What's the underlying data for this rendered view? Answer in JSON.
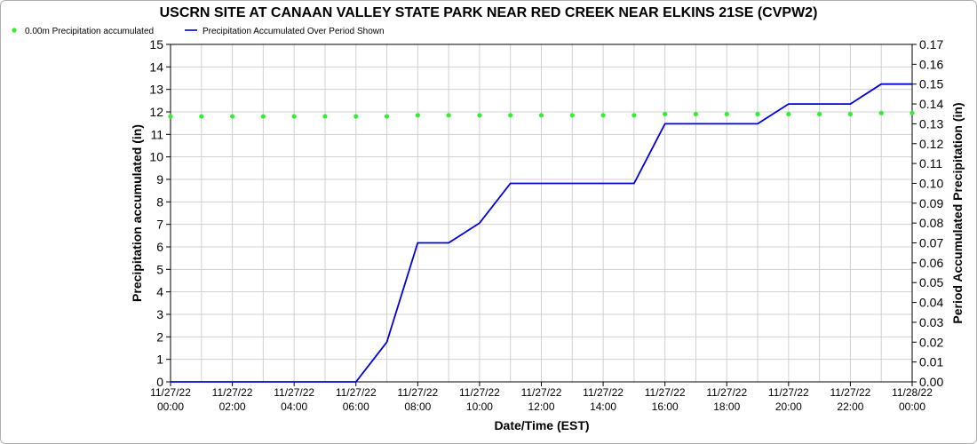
{
  "chart_data": {
    "type": "line",
    "title": "USCRN SITE AT CANAAN VALLEY STATE PARK NEAR RED CREEK NEAR ELKINS 21SE (CVPW2)",
    "xlabel": "Date/Time (EST)",
    "ylabel_left": "Precipitation accumulated (in)",
    "ylabel_right": "Period Accumulated Precipitation (in)",
    "ylim_left": [
      0,
      15
    ],
    "ylim_right": [
      0,
      0.17
    ],
    "grid": true,
    "legend_position": "top-left",
    "x_ticks": [
      {
        "date": "11/27/22",
        "time": "00:00"
      },
      {
        "date": "11/27/22",
        "time": "02:00"
      },
      {
        "date": "11/27/22",
        "time": "04:00"
      },
      {
        "date": "11/27/22",
        "time": "06:00"
      },
      {
        "date": "11/27/22",
        "time": "08:00"
      },
      {
        "date": "11/27/22",
        "time": "10:00"
      },
      {
        "date": "11/27/22",
        "time": "12:00"
      },
      {
        "date": "11/27/22",
        "time": "14:00"
      },
      {
        "date": "11/27/22",
        "time": "16:00"
      },
      {
        "date": "11/27/22",
        "time": "18:00"
      },
      {
        "date": "11/27/22",
        "time": "20:00"
      },
      {
        "date": "11/27/22",
        "time": "22:00"
      },
      {
        "date": "11/28/22",
        "time": "00:00"
      }
    ],
    "y_ticks_left": [
      "0",
      "1",
      "2",
      "3",
      "4",
      "5",
      "6",
      "7",
      "8",
      "9",
      "10",
      "11",
      "12",
      "13",
      "14",
      "15"
    ],
    "y_ticks_right": [
      "0.00",
      "0.01",
      "0.02",
      "0.03",
      "0.04",
      "0.05",
      "0.06",
      "0.07",
      "0.08",
      "0.09",
      "0.10",
      "0.11",
      "0.12",
      "0.13",
      "0.14",
      "0.15",
      "0.16",
      "0.17"
    ],
    "series": [
      {
        "name": "0.00m Precipitation accumulated",
        "axis": "left",
        "style": "scatter",
        "color": "#33ee33",
        "x": [
          0,
          1,
          2,
          3,
          4,
          5,
          6,
          7,
          8,
          9,
          10,
          11,
          12,
          13,
          14,
          15,
          16,
          17,
          18,
          19,
          20,
          21,
          22,
          23,
          24
        ],
        "y": [
          11.8,
          11.8,
          11.8,
          11.8,
          11.8,
          11.8,
          11.8,
          11.8,
          11.85,
          11.85,
          11.85,
          11.85,
          11.85,
          11.85,
          11.85,
          11.85,
          11.9,
          11.9,
          11.9,
          11.9,
          11.9,
          11.9,
          11.9,
          11.95,
          11.95
        ]
      },
      {
        "name": "Precipitation Accumulated Over Period Shown",
        "axis": "right",
        "style": "line",
        "color": "#0000dd",
        "x": [
          0,
          1,
          2,
          3,
          4,
          5,
          6,
          7,
          8,
          9,
          10,
          11,
          12,
          13,
          14,
          15,
          16,
          17,
          18,
          19,
          20,
          21,
          22,
          23,
          24
        ],
        "y": [
          0,
          0,
          0,
          0,
          0,
          0,
          0,
          0.02,
          0.07,
          0.07,
          0.08,
          0.1,
          0.1,
          0.1,
          0.1,
          0.1,
          0.13,
          0.13,
          0.13,
          0.13,
          0.14,
          0.14,
          0.14,
          0.15,
          0.15
        ]
      }
    ]
  }
}
